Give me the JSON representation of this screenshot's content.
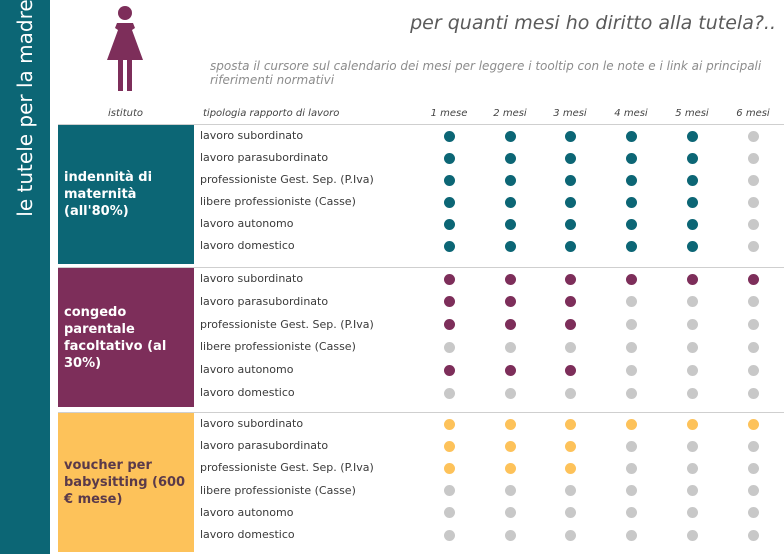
{
  "sidebar": {
    "label": "le tutele per la madre"
  },
  "header": {
    "title": "per quanti mesi ho diritto alla tutela?..",
    "subtitle": "sposta il cursore sul calendario dei mesi per leggere i tooltip con le note e i link ai principali riferimenti normativi"
  },
  "columns": {
    "istituto": "istituto",
    "tipologia": "tipologia rapporto di lavoro",
    "months": [
      "1 mese",
      "2 mesi",
      "3 mesi",
      "4 mesi",
      "5 mesi",
      "6 mesi"
    ]
  },
  "colors": {
    "sidebar": "#0c6675",
    "inactive": "#c8c8c8",
    "maternita": "#0c6675",
    "congedo": "#7d2e5a",
    "voucher": "#fdc25a"
  },
  "icons": {
    "woman": "woman-icon"
  },
  "sections": [
    {
      "label": "indennità di maternità (all'80%)",
      "color": "#0c6675",
      "text_color": "#ffffff",
      "rows": [
        {
          "label": "lavoro subordinato",
          "months": [
            1,
            1,
            1,
            1,
            1,
            0
          ]
        },
        {
          "label": "lavoro parasubordinato",
          "months": [
            1,
            1,
            1,
            1,
            1,
            0
          ]
        },
        {
          "label": "professioniste Gest. Sep. (P.Iva)",
          "months": [
            1,
            1,
            1,
            1,
            1,
            0
          ]
        },
        {
          "label": "libere professioniste (Casse)",
          "months": [
            1,
            1,
            1,
            1,
            1,
            0
          ]
        },
        {
          "label": "lavoro autonomo",
          "months": [
            1,
            1,
            1,
            1,
            1,
            0
          ]
        },
        {
          "label": "lavoro domestico",
          "months": [
            1,
            1,
            1,
            1,
            1,
            0
          ]
        }
      ]
    },
    {
      "label": "congedo parentale facoltativo (al 30%)",
      "color": "#7d2e5a",
      "text_color": "#ffffff",
      "rows": [
        {
          "label": "lavoro subordinato",
          "months": [
            1,
            1,
            1,
            1,
            1,
            1
          ]
        },
        {
          "label": "lavoro parasubordinato",
          "months": [
            1,
            1,
            1,
            0,
            0,
            0
          ]
        },
        {
          "label": "professioniste Gest. Sep. (P.Iva)",
          "months": [
            1,
            1,
            1,
            0,
            0,
            0
          ]
        },
        {
          "label": "libere professioniste (Casse)",
          "months": [
            0,
            0,
            0,
            0,
            0,
            0
          ]
        },
        {
          "label": "lavoro autonomo",
          "months": [
            1,
            1,
            1,
            0,
            0,
            0
          ]
        },
        {
          "label": "lavoro domestico",
          "months": [
            0,
            0,
            0,
            0,
            0,
            0
          ]
        }
      ]
    },
    {
      "label": "voucher per babysitting (600 € mese)",
      "color": "#fdc25a",
      "text_color": "#5a3a4a",
      "rows": [
        {
          "label": "lavoro subordinato",
          "months": [
            1,
            1,
            1,
            1,
            1,
            1
          ]
        },
        {
          "label": "lavoro parasubordinato",
          "months": [
            1,
            1,
            1,
            0,
            0,
            0
          ]
        },
        {
          "label": "professioniste Gest. Sep. (P.Iva)",
          "months": [
            1,
            1,
            1,
            0,
            0,
            0
          ]
        },
        {
          "label": "libere professioniste (Casse)",
          "months": [
            0,
            0,
            0,
            0,
            0,
            0
          ]
        },
        {
          "label": "lavoro autonomo",
          "months": [
            0,
            0,
            0,
            0,
            0,
            0
          ]
        },
        {
          "label": "lavoro domestico",
          "months": [
            0,
            0,
            0,
            0,
            0,
            0
          ]
        }
      ]
    }
  ]
}
